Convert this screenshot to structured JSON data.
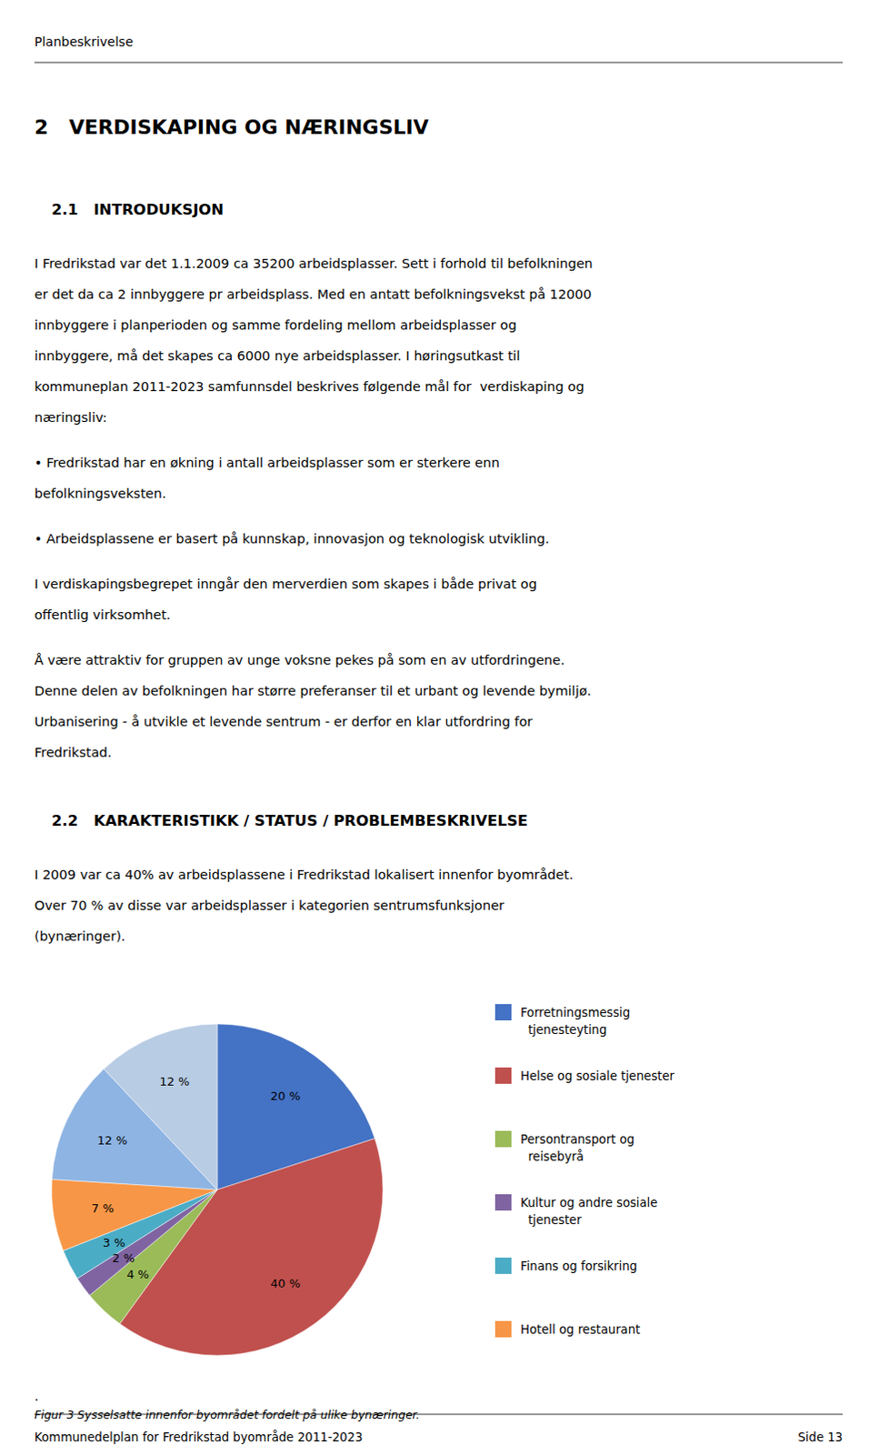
{
  "header": "Planbeskrivelse",
  "body": [
    {
      "heading": "2   VERDISKAPING OG NÆRINGSLIV"
    },
    {
      "subheading": "2.1   INTRODUKSJON"
    },
    {
      "lines": [
        "I Fredrikstad var det 1.1.2009 ca 35200 arbeidsplasser. Sett i forhold til befolkningen",
        "er det da ca 2 innbyggere pr arbeidsplass. Med en antatt befolkningsvekst på 12000",
        "innbyggere i planperioden og samme fordeling mellom arbeidsplasser og",
        "innbyggere, må det skapes ca 6000 nye arbeidsplasser. I høringsutkast til",
        "kommuneplan 2011-2023 samfunnsdel beskrives følgende mål for  verdiskaping og",
        "næringsliv:"
      ]
    },
    {
      "lines": [
        "• Fredrikstad har en økning i antall arbeidsplasser som er sterkere enn",
        "befolkningsveksten."
      ]
    },
    {
      "lines": [
        "• Arbeidsplassene er basert på kunnskap, innovasjon og teknologisk utvikling."
      ]
    },
    {
      "lines": [
        "I verdiskapingsbegrepet inngår den merverdien som skapes i både privat og",
        "offentlig virksomhet."
      ]
    },
    {
      "lines": [
        "Å være attraktiv for gruppen av unge voksne pekes på som en av utfordringene.",
        "Denne delen av befolkningen har større preferanser til et urbant og levende bymiljø.",
        "Urbanisering - å utvikle et levende sentrum - er derfor en klar utfordring for",
        "Fredrikstad."
      ]
    },
    {
      "subheading": "2.2   KARAKTERISTIKK / STATUS / PROBLEMBESKRIVELSE"
    },
    {
      "lines": [
        "I 2009 var ca 40% av arbeidsplassene i Fredrikstad lokalisert innenfor byområdet.",
        "Over 70 % av disse var arbeidsplasser i kategorien sentrumsfunksjoner",
        "(bynæringer)."
      ]
    }
  ],
  "chart_data": {
    "type": "pie",
    "categories": [
      "Forretningsmessig\n  tjenesteyting",
      "Helse og sosiale tjenester",
      "Persontransport og\n  reisebyrå",
      "Kultur og andre sosiale\n  tjenester",
      "Finans og forsikring",
      "Hotell og restaurant",
      null,
      null
    ],
    "values": [
      20,
      40,
      4,
      2,
      3,
      7,
      12,
      12
    ],
    "value_labels": [
      "20 %",
      "40 %",
      "4 %",
      "2 %",
      "3 %",
      "7 %",
      "12 %",
      "12 %"
    ],
    "colors": [
      "#4472C4",
      "#C0504D",
      "#9BBB59",
      "#8064A2",
      "#4BACC6",
      "#F79646",
      "#8EB4E3",
      "#B8CCE4"
    ],
    "data_labels": true,
    "legend": "right"
  },
  "caption": [
    ".",
    "Figur 3 Sysselsatte innenfor byområdet fordelt på ulike bynæringer."
  ],
  "footer": [
    "Kommunedelplan for Fredrikstad byområde 2011-2023",
    "Side 13"
  ]
}
